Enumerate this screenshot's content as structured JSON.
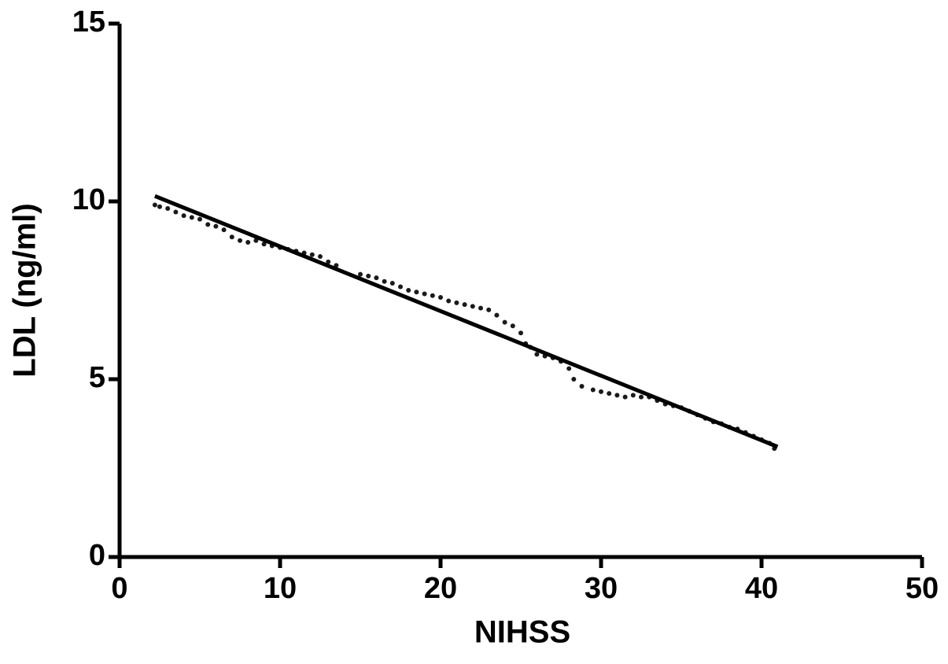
{
  "chart_data": {
    "type": "scatter",
    "x_label": "NIHSS",
    "y_label": "LDL (ng/ml)",
    "xlim": [
      0,
      50
    ],
    "xticks": [
      0,
      10,
      20,
      30,
      40,
      50
    ],
    "ylim": [
      0,
      15
    ],
    "yticks": [
      0,
      5,
      10,
      15
    ],
    "series": [
      {
        "mode": "markers",
        "color": "#1a1a1a",
        "x": [
          2.2,
          2.5,
          3,
          3.5,
          4,
          4.5,
          5,
          5.5,
          6,
          6.5,
          7,
          7.5,
          8,
          8.5,
          9,
          9.5,
          10,
          10.5,
          11,
          11.5,
          12,
          12.5,
          13,
          13.5,
          15,
          15.5,
          16,
          16.5,
          17,
          17.5,
          18,
          18.5,
          19,
          19.5,
          20,
          20.5,
          21,
          21.5,
          22,
          22.5,
          23,
          23.5,
          24,
          24.5,
          25,
          25.3,
          25.6,
          26,
          26.5,
          27,
          27.5,
          28,
          28.3,
          28.8,
          29.5,
          30,
          30.5,
          31,
          31.5,
          32,
          32.5,
          33,
          33.5,
          34,
          34.5,
          35,
          35.5,
          36,
          36.5,
          37,
          37.5,
          38,
          38.5,
          39,
          39.5,
          40,
          40.5,
          40.8
        ],
        "values": [
          9.9,
          9.85,
          9.8,
          9.7,
          9.6,
          9.55,
          9.5,
          9.35,
          9.3,
          9.2,
          9.0,
          8.9,
          8.85,
          8.9,
          8.8,
          8.75,
          8.7,
          8.65,
          8.6,
          8.55,
          8.5,
          8.45,
          8.3,
          8.2,
          7.95,
          7.9,
          7.85,
          7.75,
          7.7,
          7.6,
          7.5,
          7.45,
          7.4,
          7.35,
          7.3,
          7.2,
          7.15,
          7.1,
          7.05,
          7.0,
          6.95,
          6.8,
          6.6,
          6.5,
          6.3,
          6.0,
          5.9,
          5.7,
          5.65,
          5.6,
          5.5,
          5.3,
          5.0,
          4.8,
          4.7,
          4.65,
          4.6,
          4.55,
          4.5,
          4.55,
          4.5,
          4.5,
          4.4,
          4.3,
          4.25,
          4.2,
          4.1,
          4.0,
          3.9,
          3.8,
          3.75,
          3.65,
          3.6,
          3.5,
          3.4,
          3.3,
          3.2,
          3.05
        ]
      },
      {
        "mode": "line",
        "color": "#000000",
        "x": [
          2.2,
          41
        ],
        "values": [
          10.15,
          3.1
        ]
      }
    ]
  }
}
